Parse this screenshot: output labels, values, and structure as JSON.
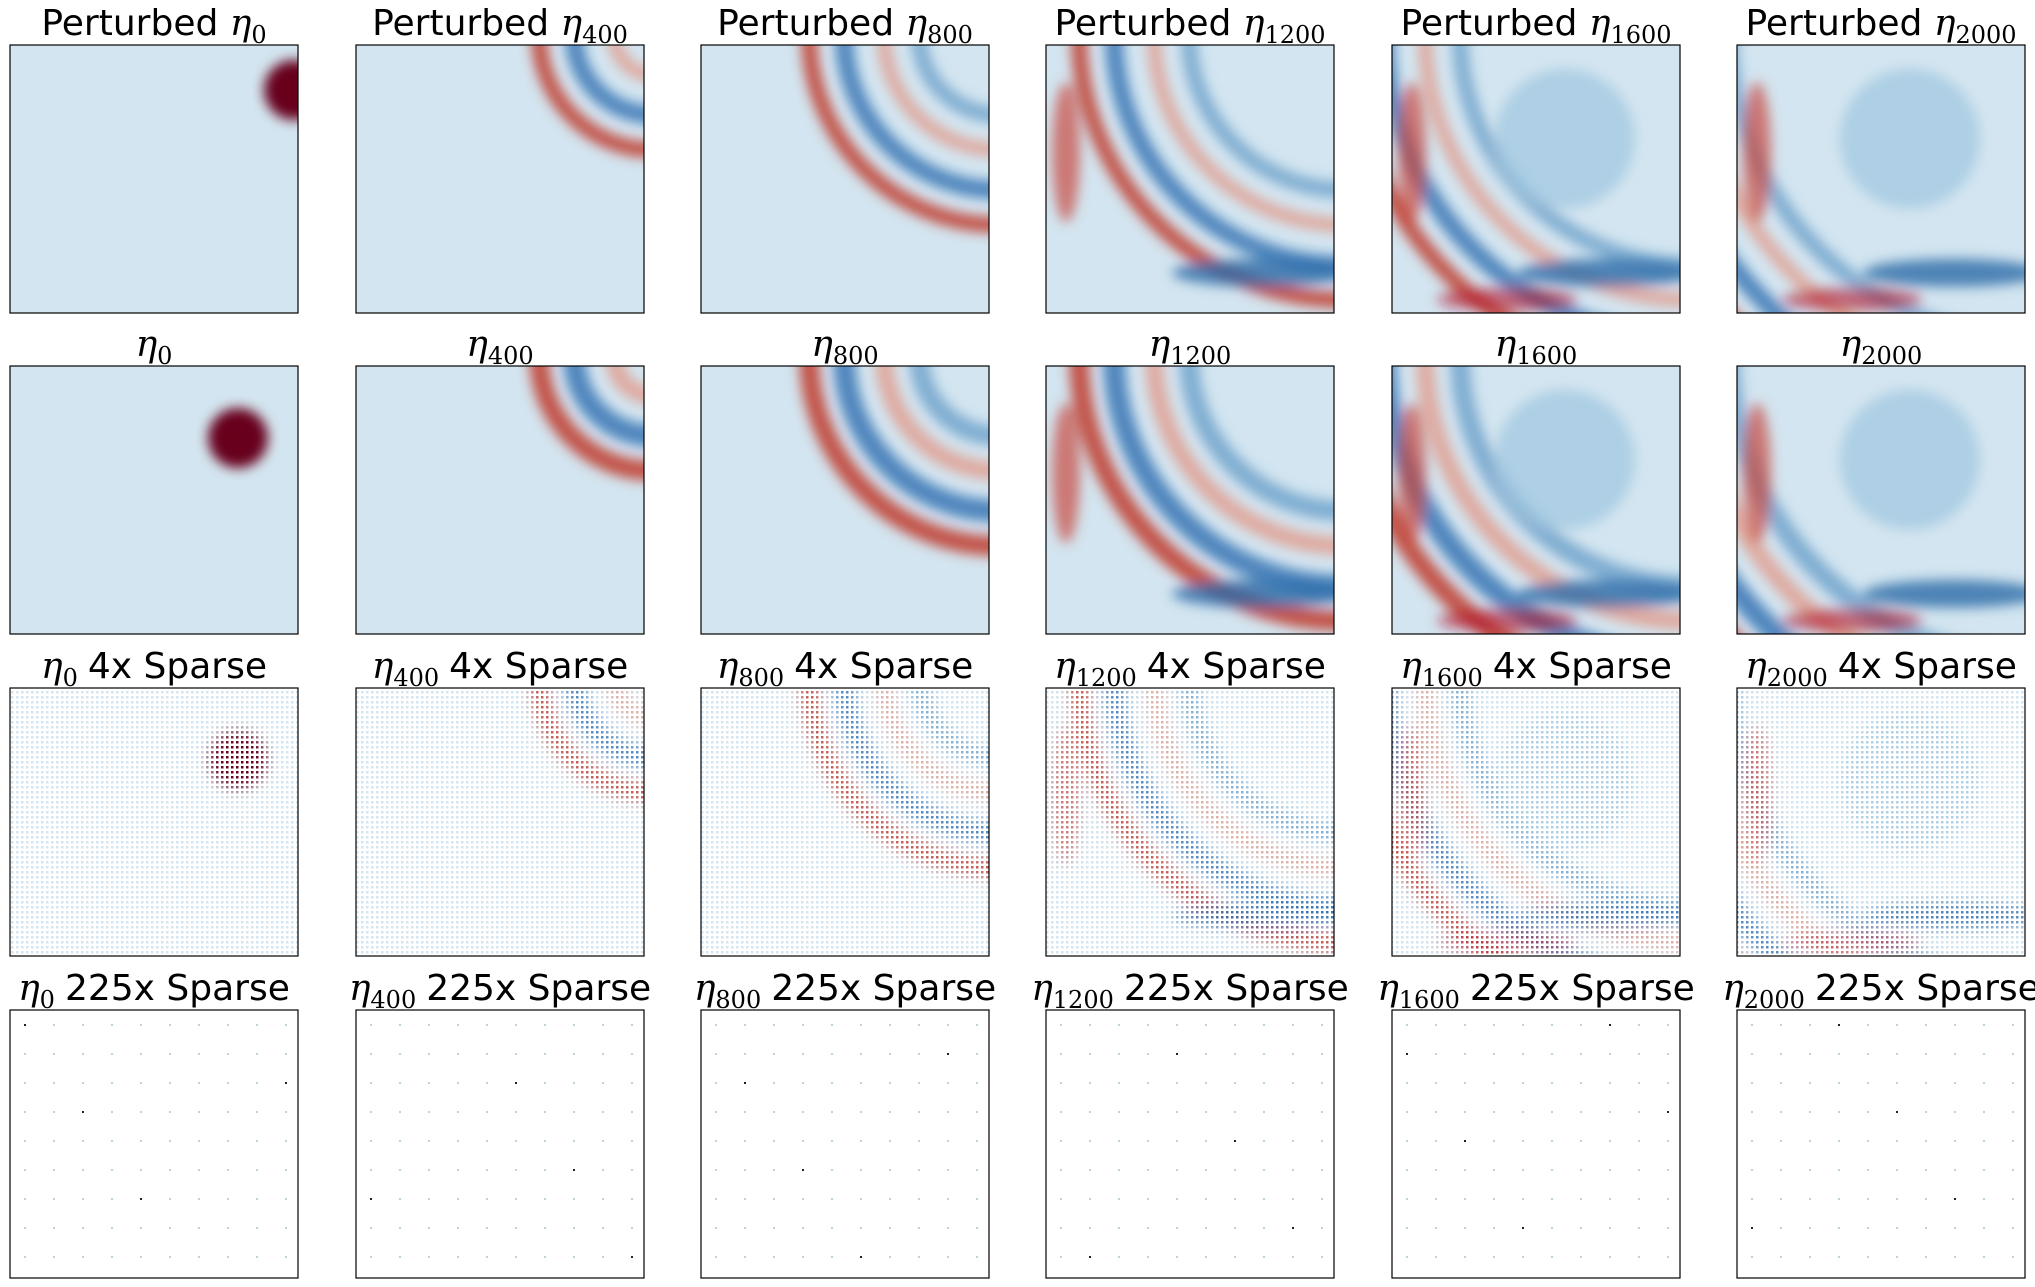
{
  "panels": [
    [
      {
        "prefix": "Perturbed",
        "symbol": "η",
        "subscript": "0"
      },
      {
        "prefix": "Perturbed",
        "symbol": "η",
        "subscript": "400"
      },
      {
        "prefix": "Perturbed",
        "symbol": "η",
        "subscript": "800"
      },
      {
        "prefix": "Perturbed",
        "symbol": "η",
        "subscript": "1200"
      },
      {
        "prefix": "Perturbed",
        "symbol": "η",
        "subscript": "1600"
      },
      {
        "prefix": "Perturbed",
        "symbol": "η",
        "subscript": "2000"
      }
    ],
    [
      {
        "symbol": "η",
        "subscript": "0"
      },
      {
        "symbol": "η",
        "subscript": "400"
      },
      {
        "symbol": "η",
        "subscript": "800"
      },
      {
        "symbol": "η",
        "subscript": "1200"
      },
      {
        "symbol": "η",
        "subscript": "1600"
      },
      {
        "symbol": "η",
        "subscript": "2000"
      }
    ],
    [
      {
        "symbol": "η",
        "subscript": "0",
        "suffix": "4x Sparse"
      },
      {
        "symbol": "η",
        "subscript": "400",
        "suffix": "4x Sparse"
      },
      {
        "symbol": "η",
        "subscript": "800",
        "suffix": "4x Sparse"
      },
      {
        "symbol": "η",
        "subscript": "1200",
        "suffix": "4x Sparse"
      },
      {
        "symbol": "η",
        "subscript": "1600",
        "suffix": "4x Sparse"
      },
      {
        "symbol": "η",
        "subscript": "2000",
        "suffix": "4x Sparse"
      }
    ],
    [
      {
        "symbol": "η",
        "subscript": "0",
        "suffix": "225x Sparse"
      },
      {
        "symbol": "η",
        "subscript": "400",
        "suffix": "225x Sparse"
      },
      {
        "symbol": "η",
        "subscript": "800",
        "suffix": "225x Sparse"
      },
      {
        "symbol": "η",
        "subscript": "1200",
        "suffix": "225x Sparse"
      },
      {
        "symbol": "η",
        "subscript": "1600",
        "suffix": "225x Sparse"
      },
      {
        "symbol": "η",
        "subscript": "2000",
        "suffix": "225x Sparse"
      }
    ]
  ]
}
